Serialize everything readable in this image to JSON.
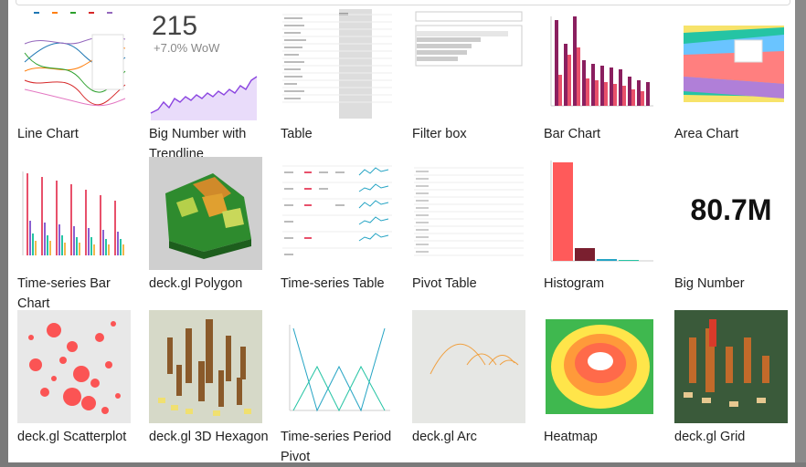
{
  "gallery": {
    "items": [
      {
        "label": "Line Chart"
      },
      {
        "label": "Big Number with Trendline"
      },
      {
        "label": "Table"
      },
      {
        "label": "Filter box"
      },
      {
        "label": "Bar Chart"
      },
      {
        "label": "Area Chart"
      },
      {
        "label": "Time-series Bar Chart"
      },
      {
        "label": "deck.gl Polygon"
      },
      {
        "label": "Time-series Table"
      },
      {
        "label": "Pivot Table"
      },
      {
        "label": "Histogram"
      },
      {
        "label": "Big Number"
      },
      {
        "label": "deck.gl Scatterplot"
      },
      {
        "label": "deck.gl 3D Hexagon"
      },
      {
        "label": "Time-series Period Pivot"
      },
      {
        "label": "deck.gl Arc"
      },
      {
        "label": "Heatmap"
      },
      {
        "label": "deck.gl Grid"
      }
    ]
  },
  "previews": {
    "big_number_trend": {
      "value": "215",
      "delta": "+7.0% WoW"
    },
    "big_number": {
      "value": "80.7M"
    }
  },
  "colors": {
    "accent_purple": "#8a44e0",
    "bar_pink": "#e8516b",
    "bar_purple": "#8a1f5f",
    "histogram_red": "#ff5a5a"
  }
}
